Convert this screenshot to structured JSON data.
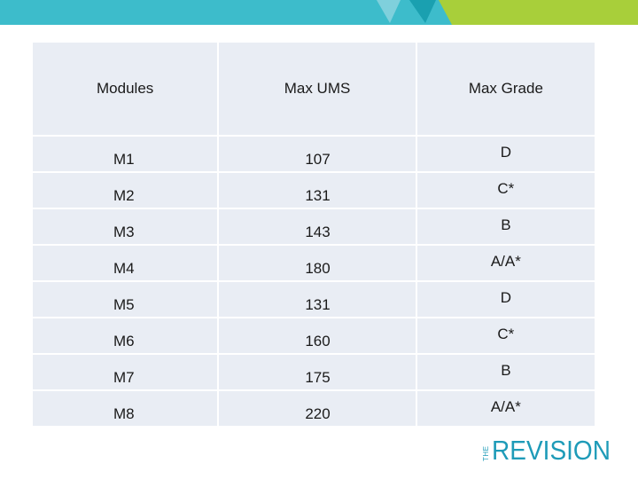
{
  "colors": {
    "banner_teal": "#3dbccb",
    "banner_dark_teal": "#1aa0b0",
    "banner_lime": "#a8cf3a",
    "table_bg": "#e9edf4",
    "logo_blue": "#1e9bb8"
  },
  "table": {
    "headers": [
      "Modules",
      "Max UMS",
      "Max Grade"
    ],
    "rows": [
      {
        "module": "M1",
        "max_ums": "107",
        "max_grade": "D"
      },
      {
        "module": "M2",
        "max_ums": "131",
        "max_grade": "C*"
      },
      {
        "module": "M3",
        "max_ums": "143",
        "max_grade": "B"
      },
      {
        "module": "M4",
        "max_ums": "180",
        "max_grade": "A/A*"
      },
      {
        "module": "M5",
        "max_ums": "131",
        "max_grade": "D"
      },
      {
        "module": "M6",
        "max_ums": "160",
        "max_grade": "C*"
      },
      {
        "module": "M7",
        "max_ums": "175",
        "max_grade": "B"
      },
      {
        "module": "M8",
        "max_ums": "220",
        "max_grade": "A/A*"
      }
    ]
  },
  "logo": {
    "prefix": "THE",
    "word": "REVISION"
  }
}
